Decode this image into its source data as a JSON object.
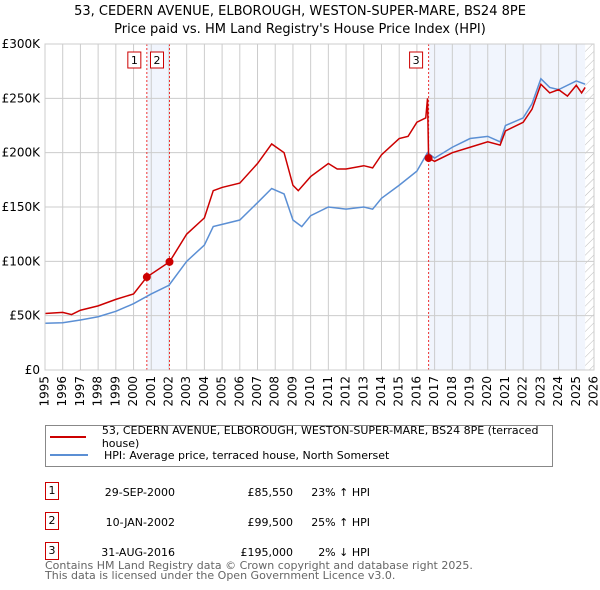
{
  "chart_data": {
    "type": "line",
    "title": "53, CEDERN AVENUE, ELBOROUGH, WESTON-SUPER-MARE, BS24 8PE",
    "subtitle": "Price paid vs. HM Land Registry's House Price Index (HPI)",
    "xlim": [
      1995,
      2026
    ],
    "ylim": [
      0,
      300000
    ],
    "x_ticks": [
      "1995",
      "1996",
      "1997",
      "1998",
      "1999",
      "2000",
      "2001",
      "2002",
      "2003",
      "2004",
      "2005",
      "2006",
      "2007",
      "2008",
      "2009",
      "2010",
      "2011",
      "2012",
      "2013",
      "2014",
      "2015",
      "2016",
      "2017",
      "2018",
      "2019",
      "2020",
      "2021",
      "2022",
      "2023",
      "2024",
      "2025",
      "2026"
    ],
    "y_ticks": [
      {
        "v": 0,
        "label": "£0"
      },
      {
        "v": 50000,
        "label": "£50K"
      },
      {
        "v": 100000,
        "label": "£100K"
      },
      {
        "v": 150000,
        "label": "£150K"
      },
      {
        "v": 200000,
        "label": "£200K"
      },
      {
        "v": 250000,
        "label": "£250K"
      },
      {
        "v": 300000,
        "label": "£300K"
      }
    ],
    "grid": true,
    "series": [
      {
        "name": "53, CEDERN AVENUE, ELBOROUGH, WESTON-SUPER-MARE, BS24 8PE (terraced house)",
        "color": "#cc0000",
        "x": [
          1995,
          1996,
          1996.5,
          1997,
          1998,
          1999,
          2000,
          2000.75,
          2002.03,
          2003,
          2004,
          2004.5,
          2005,
          2006,
          2007,
          2007.8,
          2008.5,
          2009,
          2009.3,
          2010,
          2011,
          2011.5,
          2012,
          2013,
          2013.5,
          2014,
          2015,
          2015.5,
          2016,
          2016.5,
          2016.6,
          2016.66,
          2017,
          2018,
          2019,
          2020,
          2020.7,
          2021,
          2022,
          2022.5,
          2023,
          2023.5,
          2024,
          2024.5,
          2025,
          2025.3,
          2025.5
        ],
        "y": [
          52,
          53,
          51,
          55,
          59,
          65,
          70,
          85.55,
          99.5,
          125,
          140,
          165,
          168,
          172,
          190,
          208,
          200,
          170,
          165,
          178,
          190,
          185,
          185,
          188,
          186,
          198,
          213,
          215,
          228,
          232,
          250,
          195,
          192,
          200,
          205,
          210,
          207,
          220,
          228,
          240,
          263,
          255,
          258,
          252,
          262,
          255,
          260
        ]
      },
      {
        "name": "HPI: Average price, terraced house, North Somerset",
        "color": "#5b8fd4",
        "x": [
          1995,
          1996,
          1997,
          1998,
          1999,
          2000,
          2001,
          2002,
          2003,
          2004,
          2004.5,
          2005,
          2006,
          2007,
          2007.8,
          2008.5,
          2009,
          2009.5,
          2010,
          2011,
          2012,
          2013,
          2013.5,
          2014,
          2015,
          2016,
          2016.6,
          2017,
          2018,
          2019,
          2020,
          2020.7,
          2021,
          2022,
          2022.5,
          2023,
          2023.5,
          2024,
          2025,
          2025.5
        ],
        "y": [
          43,
          43.5,
          46,
          49,
          54,
          61,
          70,
          78,
          100,
          115,
          132,
          134,
          138,
          154,
          167,
          162,
          138,
          132,
          142,
          150,
          148,
          150,
          148,
          158,
          170,
          183,
          200,
          195,
          205,
          213,
          215,
          210,
          225,
          232,
          245,
          268,
          260,
          258,
          266,
          263
        ]
      }
    ],
    "y_units": 1000,
    "shaded": [
      [
        2000.75,
        2002.03
      ],
      [
        2016.66,
        2025.5
      ]
    ],
    "hatch_from": 2025.5,
    "sales": [
      {
        "n": "1",
        "x": 2000.75,
        "y": 85.55
      },
      {
        "n": "2",
        "x": 2002.03,
        "y": 99.5
      },
      {
        "n": "3",
        "x": 2016.66,
        "y": 195
      }
    ]
  },
  "table": [
    {
      "n": "1",
      "date": "29-SEP-2000",
      "price": "£85,550",
      "hpi": "23% ↑ HPI"
    },
    {
      "n": "2",
      "date": "10-JAN-2002",
      "price": "£99,500",
      "hpi": "25% ↑ HPI"
    },
    {
      "n": "3",
      "date": "31-AUG-2016",
      "price": "£195,000",
      "hpi": "2% ↓ HPI"
    }
  ],
  "footer": [
    "Contains HM Land Registry data © Crown copyright and database right 2025.",
    "This data is licensed under the Open Government Licence v3.0."
  ]
}
